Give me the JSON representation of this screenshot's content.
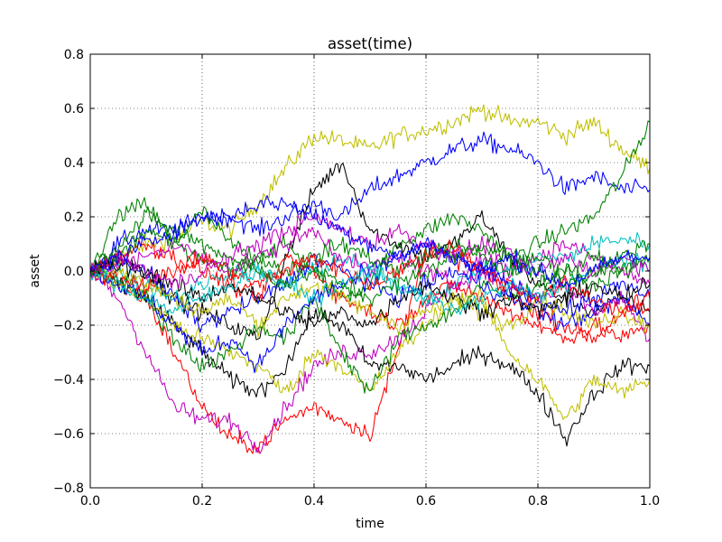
{
  "chart_data": {
    "type": "line",
    "title": "asset(time)",
    "xlabel": "time",
    "ylabel": "asset",
    "xlim": [
      0.0,
      1.0
    ],
    "ylim": [
      -0.8,
      0.8
    ],
    "x_ticks": [
      "0.0",
      "0.2",
      "0.4",
      "0.6",
      "0.8",
      "1.0"
    ],
    "y_ticks": [
      "−0.8",
      "−0.6",
      "−0.4",
      "−0.2",
      "0.0",
      "0.2",
      "0.4",
      "0.6",
      "0.8"
    ],
    "grid": true,
    "x": [
      0.0,
      0.05,
      0.1,
      0.15,
      0.2,
      0.25,
      0.3,
      0.35,
      0.4,
      0.45,
      0.5,
      0.55,
      0.6,
      0.65,
      0.7,
      0.75,
      0.8,
      0.85,
      0.9,
      0.95,
      1.0
    ],
    "series": [
      {
        "color": "#bfbf00",
        "values": [
          0.0,
          0.05,
          0.1,
          0.12,
          0.18,
          0.15,
          0.25,
          0.38,
          0.5,
          0.48,
          0.45,
          0.5,
          0.52,
          0.55,
          0.6,
          0.55,
          0.55,
          0.5,
          0.55,
          0.45,
          0.38
        ]
      },
      {
        "color": "#0000ff",
        "values": [
          0.0,
          0.1,
          0.15,
          0.15,
          0.2,
          0.2,
          0.15,
          0.2,
          0.25,
          0.2,
          0.3,
          0.35,
          0.4,
          0.45,
          0.48,
          0.45,
          0.4,
          0.3,
          0.35,
          0.3,
          0.3
        ]
      },
      {
        "color": "#008000",
        "values": [
          0.0,
          0.2,
          0.25,
          0.1,
          0.22,
          0.1,
          0.05,
          0.1,
          0.0,
          -0.1,
          -0.05,
          0.1,
          0.15,
          0.2,
          0.15,
          0.05,
          0.1,
          0.15,
          0.2,
          0.35,
          0.55
        ]
      },
      {
        "color": "#000000",
        "values": [
          0.0,
          0.05,
          0.0,
          -0.1,
          -0.15,
          -0.2,
          -0.25,
          0.05,
          0.3,
          0.4,
          0.15,
          0.1,
          0.05,
          0.1,
          0.2,
          0.05,
          -0.05,
          -0.1,
          -0.15,
          -0.1,
          -0.15
        ]
      },
      {
        "color": "#ff0000",
        "values": [
          0.0,
          -0.05,
          -0.1,
          -0.3,
          -0.5,
          -0.62,
          -0.65,
          -0.55,
          -0.5,
          -0.55,
          -0.6,
          -0.3,
          0.1,
          0.05,
          0.0,
          -0.1,
          -0.15,
          -0.2,
          -0.25,
          -0.15,
          -0.15
        ]
      },
      {
        "color": "#bf00bf",
        "values": [
          0.0,
          -0.1,
          -0.3,
          -0.5,
          -0.55,
          -0.55,
          -0.65,
          -0.5,
          -0.35,
          -0.3,
          -0.3,
          -0.25,
          -0.15,
          -0.05,
          0.05,
          0.0,
          0.05,
          0.1,
          0.05,
          0.0,
          -0.05
        ]
      },
      {
        "color": "#000000",
        "values": [
          0.0,
          -0.05,
          -0.1,
          -0.2,
          -0.3,
          -0.4,
          -0.45,
          -0.35,
          -0.15,
          -0.2,
          -0.35,
          -0.35,
          -0.4,
          -0.35,
          -0.3,
          -0.35,
          -0.45,
          -0.62,
          -0.45,
          -0.35,
          -0.35
        ]
      },
      {
        "color": "#bfbf00",
        "values": [
          0.0,
          -0.05,
          -0.1,
          -0.2,
          -0.25,
          -0.3,
          -0.35,
          -0.45,
          -0.3,
          -0.35,
          -0.45,
          -0.3,
          -0.2,
          -0.1,
          -0.1,
          -0.3,
          -0.4,
          -0.55,
          -0.4,
          -0.45,
          -0.4
        ]
      },
      {
        "color": "#00bfbf",
        "values": [
          0.0,
          0.0,
          -0.05,
          -0.1,
          -0.05,
          0.0,
          0.0,
          -0.05,
          0.0,
          0.05,
          0.0,
          -0.05,
          -0.1,
          -0.05,
          0.0,
          0.0,
          0.05,
          0.05,
          0.1,
          0.12,
          0.1
        ]
      },
      {
        "color": "#008000",
        "values": [
          0.0,
          -0.02,
          -0.1,
          -0.25,
          -0.35,
          -0.3,
          -0.2,
          -0.25,
          -0.1,
          -0.3,
          -0.45,
          -0.25,
          -0.2,
          -0.15,
          -0.05,
          -0.1,
          -0.05,
          0.0,
          0.05,
          0.0,
          0.05
        ]
      },
      {
        "color": "#0000ff",
        "values": [
          0.0,
          0.05,
          0.0,
          -0.1,
          -0.2,
          -0.15,
          -0.1,
          -0.05,
          0.05,
          0.0,
          -0.05,
          -0.1,
          -0.05,
          0.0,
          -0.05,
          -0.1,
          -0.15,
          -0.2,
          -0.15,
          -0.1,
          -0.2
        ]
      },
      {
        "color": "#ff0000",
        "values": [
          0.0,
          0.05,
          0.1,
          0.05,
          0.0,
          -0.05,
          -0.1,
          0.05,
          0.0,
          -0.1,
          -0.15,
          -0.2,
          -0.1,
          -0.05,
          -0.1,
          -0.15,
          -0.2,
          -0.25,
          -0.2,
          -0.25,
          -0.2
        ]
      },
      {
        "color": "#bf00bf",
        "values": [
          0.0,
          0.02,
          0.05,
          0.1,
          0.05,
          0.0,
          0.05,
          0.1,
          0.15,
          0.05,
          0.0,
          0.05,
          0.0,
          -0.05,
          0.0,
          -0.05,
          -0.1,
          -0.05,
          -0.15,
          -0.1,
          -0.25
        ]
      },
      {
        "color": "#bfbf00",
        "values": [
          0.0,
          0.0,
          -0.05,
          -0.1,
          -0.15,
          -0.1,
          -0.2,
          -0.1,
          -0.05,
          -0.1,
          -0.15,
          -0.2,
          -0.15,
          -0.1,
          -0.15,
          -0.2,
          -0.1,
          -0.15,
          -0.2,
          -0.15,
          -0.2
        ]
      },
      {
        "color": "#0000ff",
        "values": [
          0.0,
          -0.05,
          -0.1,
          -0.2,
          -0.3,
          -0.25,
          -0.35,
          -0.2,
          -0.1,
          -0.05,
          0.0,
          0.05,
          0.1,
          0.05,
          0.0,
          -0.05,
          -0.1,
          -0.15,
          -0.1,
          -0.05,
          -0.1
        ]
      },
      {
        "color": "#008000",
        "values": [
          0.0,
          0.05,
          0.15,
          0.1,
          0.05,
          0.0,
          0.05,
          0.0,
          0.05,
          0.1,
          0.05,
          0.0,
          0.05,
          0.1,
          0.05,
          0.0,
          0.05,
          0.0,
          -0.05,
          0.0,
          0.05
        ]
      },
      {
        "color": "#000000",
        "values": [
          0.0,
          0.02,
          0.0,
          -0.05,
          -0.1,
          -0.05,
          -0.1,
          -0.15,
          -0.2,
          -0.15,
          -0.2,
          -0.1,
          -0.05,
          -0.1,
          -0.15,
          -0.1,
          -0.15,
          -0.1,
          -0.05,
          -0.1,
          -0.05
        ]
      },
      {
        "color": "#ff0000",
        "values": [
          0.0,
          -0.02,
          -0.05,
          0.0,
          0.05,
          0.0,
          -0.05,
          0.0,
          0.05,
          0.0,
          -0.05,
          0.0,
          0.05,
          0.1,
          0.0,
          -0.05,
          -0.1,
          -0.05,
          -0.1,
          -0.15,
          -0.1
        ]
      },
      {
        "color": "#00bfbf",
        "values": [
          0.0,
          -0.05,
          -0.1,
          -0.15,
          -0.1,
          -0.05,
          0.0,
          -0.05,
          -0.1,
          -0.05,
          0.0,
          -0.05,
          -0.1,
          -0.15,
          -0.1,
          -0.05,
          -0.1,
          -0.05,
          0.0,
          0.05,
          0.0
        ]
      },
      {
        "color": "#bf00bf",
        "values": [
          0.0,
          0.05,
          0.0,
          -0.05,
          0.0,
          0.05,
          0.1,
          0.15,
          0.2,
          0.15,
          0.1,
          0.15,
          0.1,
          0.05,
          0.1,
          0.05,
          0.0,
          0.05,
          0.0,
          0.05,
          0.0
        ]
      },
      {
        "color": "#008000",
        "values": [
          0.0,
          0.1,
          0.2,
          0.15,
          0.1,
          0.05,
          0.0,
          -0.05,
          0.0,
          -0.05,
          -0.1,
          -0.05,
          0.0,
          0.05,
          0.1,
          0.05,
          0.0,
          -0.05,
          0.0,
          0.05,
          0.1
        ]
      },
      {
        "color": "#0000ff",
        "values": [
          0.0,
          0.05,
          0.1,
          0.15,
          0.2,
          0.2,
          0.25,
          0.25,
          0.2,
          0.15,
          0.1,
          0.05,
          0.1,
          0.05,
          0.0,
          0.05,
          0.0,
          -0.05,
          0.0,
          0.05,
          0.05
        ]
      }
    ]
  }
}
